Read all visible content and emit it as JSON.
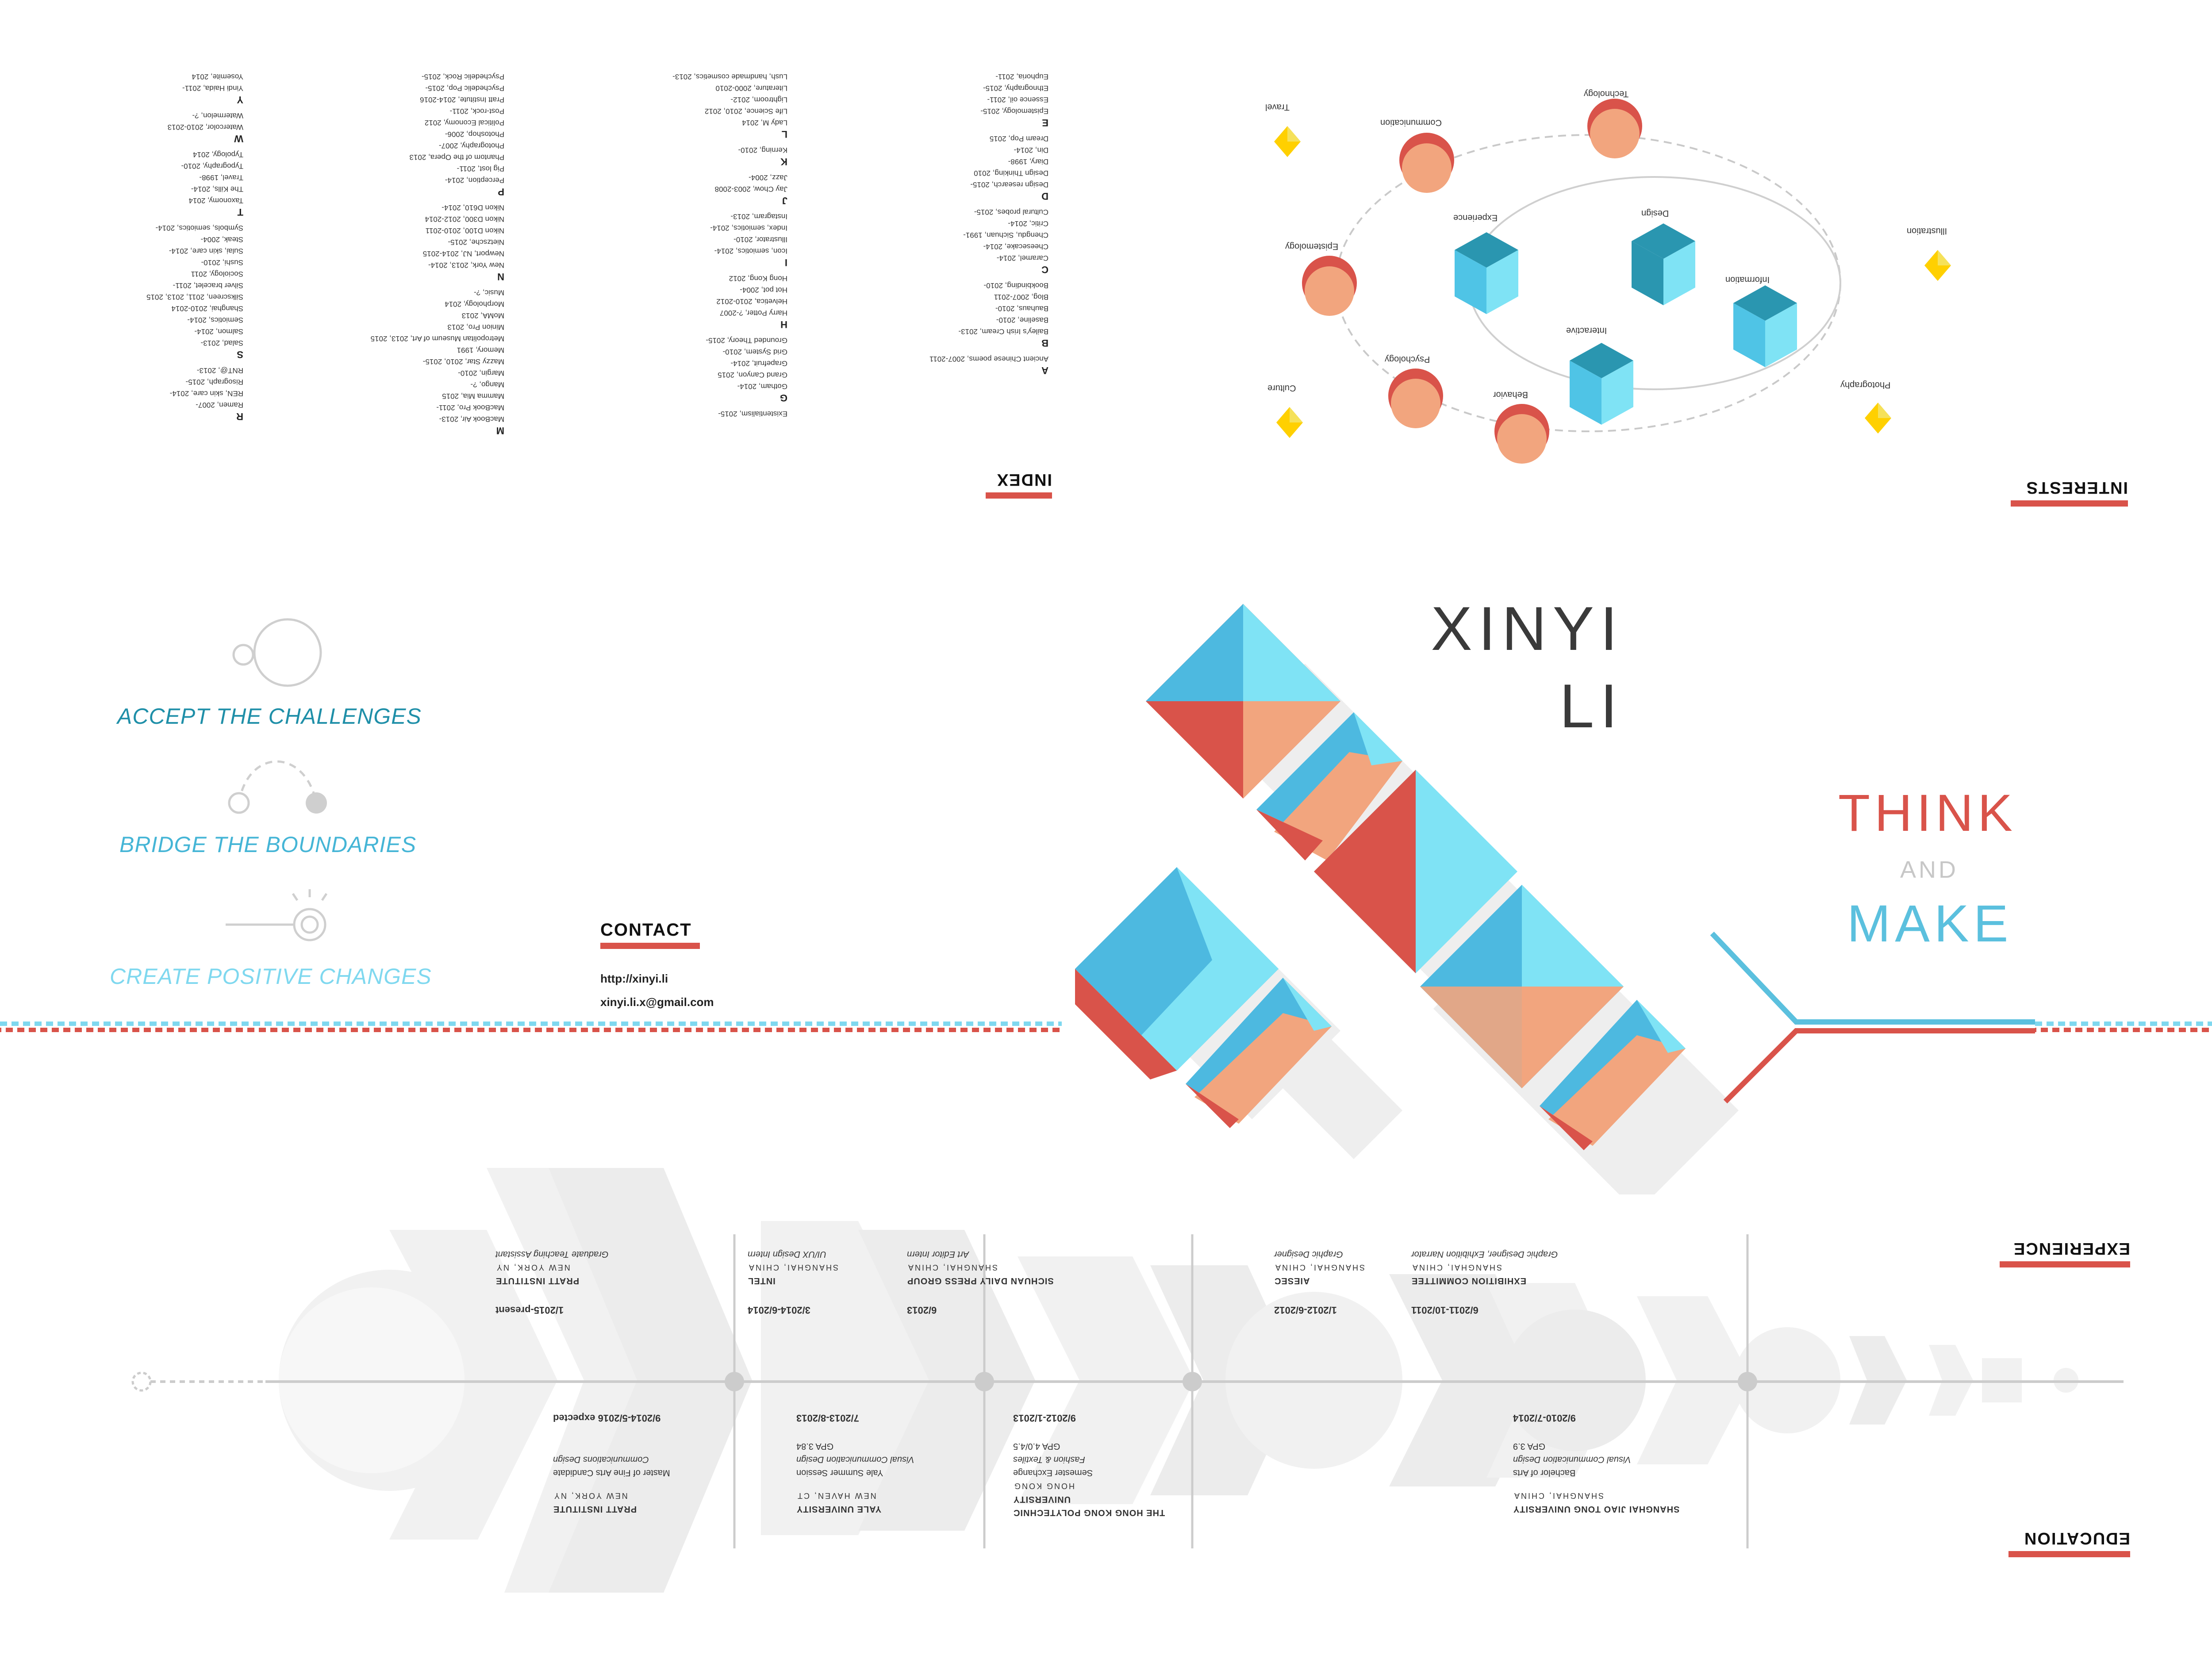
{
  "index": {
    "heading": "INDEX",
    "columns": [
      [
        {
          "letter": "A"
        },
        {
          "item": "Ancient Chinese poems, 2007-2011"
        },
        {
          "letter": "B"
        },
        {
          "item": "Bailey's Irish Cream, 2013-"
        },
        {
          "item": "Baseline, 2010-"
        },
        {
          "item": "Bauhaus, 2010-"
        },
        {
          "item": "Blog, 2007-2011"
        },
        {
          "item": "Bookbinding, 2010-"
        },
        {
          "letter": "C"
        },
        {
          "item": "Caramel, 2014-"
        },
        {
          "item": "Cheesecake, 2014-"
        },
        {
          "item": "Chengdu, Sichuan, 1991-"
        },
        {
          "item": "Critic, 2014-"
        },
        {
          "item": "Cultural probes, 2015-"
        },
        {
          "letter": "D"
        },
        {
          "item": "Design research, 2015-"
        },
        {
          "item": "Design Thinking, 2010"
        },
        {
          "item": "Diary, 1998-"
        },
        {
          "item": "Din, 2014-"
        },
        {
          "item": "Dream Pop, 2015"
        },
        {
          "letter": "E"
        },
        {
          "item": "Epistemology, 2015-"
        },
        {
          "item": "Essence oil, 2011-"
        },
        {
          "item": "Ethnography, 2015-"
        },
        {
          "item": "Euphoria, 2011-"
        }
      ],
      [
        {
          "item": "Existentialism, 2015-"
        },
        {
          "letter": "G"
        },
        {
          "item": "Gotham, 2014-"
        },
        {
          "item": "Grand Canyon, 2015"
        },
        {
          "item": "Grapefruit, 2014-"
        },
        {
          "item": "Grid System, 2010-"
        },
        {
          "item": "Grounded Theory, 2015-"
        },
        {
          "letter": "H"
        },
        {
          "item": "Harry Potter, ?-2007"
        },
        {
          "item": "Helvetica, 2010-2012"
        },
        {
          "item": "Hot pot, 2004-"
        },
        {
          "item": "Hong Kong, 2012"
        },
        {
          "letter": "I"
        },
        {
          "item": "Icon, semiotics, 2014-"
        },
        {
          "item": "Illustrator, 2010-"
        },
        {
          "item": "Index, semiotics, 2014-"
        },
        {
          "item": "Instagram, 2013-"
        },
        {
          "letter": "J"
        },
        {
          "item": "Jay Chow, 2003-2008"
        },
        {
          "item": "Jazz, 2004-"
        },
        {
          "letter": "K"
        },
        {
          "item": "Kerning, 2010-"
        },
        {
          "letter": "L"
        },
        {
          "item": "Lady M, 2014"
        },
        {
          "item": "Life Science, 2010, 2012"
        },
        {
          "item": "Lightroom, 2012-"
        },
        {
          "item": "Literature, 2000-2010"
        },
        {
          "item": "Lush, handmade cosmetics, 2013-"
        }
      ],
      [
        {
          "letter": "M"
        },
        {
          "item": "MacBook Air, 2013-"
        },
        {
          "item": "MacBook Pro, 2011-"
        },
        {
          "item": "Mamma Mia, 2015"
        },
        {
          "item": "Mango, ?-"
        },
        {
          "item": "Margin, 2010-"
        },
        {
          "item": "Mazzy Star, 2010, 2015-"
        },
        {
          "item": "Memory, 1991"
        },
        {
          "item": "Metropolitan Museum of Art, 2013, 2015"
        },
        {
          "item": "Minion Pro, 2013"
        },
        {
          "item": "MoMA, 2013"
        },
        {
          "item": "Morphology, 2014"
        },
        {
          "item": "Music, ?-"
        },
        {
          "letter": "N"
        },
        {
          "item": "New York, 2013, 2014-"
        },
        {
          "item": "Newport, NJ, 2014-2015"
        },
        {
          "item": "Nietzsche, 2015-"
        },
        {
          "item": "Nikon D100, 2010-2011"
        },
        {
          "item": "Nikon D300, 2012-2014"
        },
        {
          "item": "Nikon D610, 2014-"
        },
        {
          "letter": "P"
        },
        {
          "item": "Perception, 2014-"
        },
        {
          "item": "Pig lost, 2011-"
        },
        {
          "item": "Phantom of the Opera, 2013"
        },
        {
          "item": "Photography, 2007-"
        },
        {
          "item": "Photoshop, 2006-"
        },
        {
          "item": "Political Economy, 2012"
        },
        {
          "item": "Post-rock, 2011-"
        },
        {
          "item": "Pratt Institute, 2014-2016"
        },
        {
          "item": "Psychedelic Pop, 2015-"
        },
        {
          "item": "Psychedelic Rock, 2015-"
        }
      ],
      [
        {
          "letter": "R"
        },
        {
          "item": "Ramen, 2007-"
        },
        {
          "item": "REN, skin care, 2014-"
        },
        {
          "item": "Risograph, 2015-"
        },
        {
          "item": "RNT@, 2013-"
        },
        {
          "letter": "S"
        },
        {
          "item": "Salad, 2013-"
        },
        {
          "item": "Salmon, 2014-"
        },
        {
          "item": "Semiotics, 2014-"
        },
        {
          "item": "Shanghai, 2010-2014"
        },
        {
          "item": "Silkscreen, 2011, 2013, 2015"
        },
        {
          "item": "Silver bracelet, 2011-"
        },
        {
          "item": "Sociology, 2011"
        },
        {
          "item": "Sushi, 2010-"
        },
        {
          "item": "Sulai, skin care, 2014-"
        },
        {
          "item": "Steak, 2004-"
        },
        {
          "item": "Symbols, semiotics, 2014-"
        },
        {
          "letter": "T"
        },
        {
          "item": "Taxonomy, 2014"
        },
        {
          "item": "The Kills, 2014-"
        },
        {
          "item": "Travel, 1998-"
        },
        {
          "item": "Typography, 2010-"
        },
        {
          "item": "Typology, 2014"
        },
        {
          "letter": "W"
        },
        {
          "item": "Watercolor, 2010-2013"
        },
        {
          "item": "Watermelon, ?-"
        },
        {
          "letter": "Y"
        },
        {
          "item": "Yindi Haida, 2011-"
        },
        {
          "item": "Yosemite, 2014"
        }
      ]
    ]
  },
  "interests": {
    "heading": "INTERESTS",
    "labels": {
      "travel": "Travel",
      "technology": "Technology",
      "communication": "Communication",
      "illustration": "Illustration",
      "epistemology": "Epistemology",
      "experience": "Experience",
      "design": "Design",
      "information": "Information",
      "interactive": "Interactive",
      "culture": "Culture",
      "psychology": "Psychology",
      "behavior": "Behavior",
      "photography": "Photography"
    }
  },
  "name": {
    "first": "XINYI",
    "last": "LI"
  },
  "motto": {
    "think": "THINK",
    "and": "AND",
    "make": "MAKE"
  },
  "slogans": {
    "accept": "ACCEPT THE CHALLENGES",
    "bridge": "BRIDGE THE BOUNDARIES",
    "create": "CREATE POSITIVE CHANGES"
  },
  "contact": {
    "heading": "CONTACT",
    "url": "http://xinyi.li",
    "email": "xinyi.li.x@gmail.com"
  },
  "experience": {
    "heading": "EXPERIENCE",
    "items": [
      {
        "date": "6/2011-10/2011",
        "org": "EXHIBITION COMMITTEE",
        "loc": "SHANGHAI, CHINA",
        "role": "Graphic Designer, Exhibition Narrator"
      },
      {
        "date": "1/2012-6/2012",
        "org": "AIESEC",
        "loc": "SHANGHAI, CHINA",
        "role": "Graphic Designer"
      },
      {
        "date": "6/2013",
        "org": "SICHUAN DAILY PRESS GROUP",
        "loc": "SHANGHAI, CHINA",
        "role": "Art Editor Intern"
      },
      {
        "date": "3/2014-6/2014",
        "org": "INTEL",
        "loc": "SHANGHAI, CHINA",
        "role": "UI/UX Design Intern"
      },
      {
        "date": "1/2015-present",
        "org": "PRATT INSTITUTE",
        "loc": "NEW YORK, NY",
        "role": "Graduate Teaching Assistant"
      }
    ]
  },
  "education": {
    "heading": "EDUCATION",
    "items": [
      {
        "date": "9/2010-7/2014",
        "org": "SHANGHAI JIAO TONG UNIVERSITY",
        "loc": "SHANGHAI, CHINA",
        "degree": "Bachelor of Arts",
        "field": "Visual Communication Design",
        "gpa": "GPA 3.9"
      },
      {
        "date": "9/2012-1/2013",
        "org": "THE HONG KONG POLYTECHNIC UNIVERSITY",
        "loc": "HONG KONG",
        "degree": "Semester Exchange",
        "field": "Fashion & Textiles",
        "gpa": "GPA 4.0/4.5"
      },
      {
        "date": "7/2013-8/2013",
        "org": "YALE UNIVERSITY",
        "loc": "NEW HAVEN, CT",
        "degree": "Yale Summer Session",
        "field": "Visual Communication Design",
        "gpa": "GPA 3.84"
      },
      {
        "date": "9/2014-5/2016 expected",
        "org": "PRATT INSTITUTE",
        "loc": "NEW YORK, NY",
        "degree": "Master of Fine Arts Candidate",
        "field": "Communications Design",
        "gpa": ""
      }
    ]
  },
  "colors": {
    "red": "#d9534a",
    "blue": "#5bc0de",
    "lightblue": "#7fe3f5",
    "peach": "#f2a57e",
    "gold": "#ffd000",
    "gray": "#cccccc"
  }
}
